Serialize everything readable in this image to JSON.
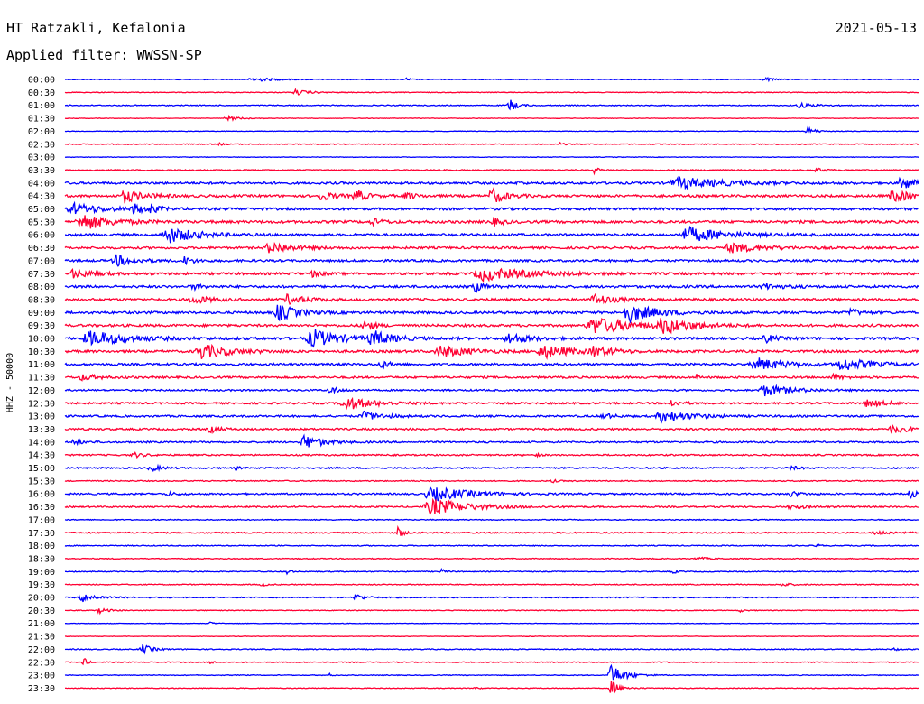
{
  "header": {
    "station": "HT Ratzakli, Kefalonia",
    "date": "2021-05-13",
    "filter": "Applied filter: WWSSN-SP"
  },
  "chart_data": {
    "type": "line",
    "title": "HT Ratzakli, Kefalonia",
    "ylabel": "HHZ - 50000",
    "colors": {
      "even": "#0000ff",
      "odd": "#ff0033"
    },
    "rows": [
      {
        "label": "00:00",
        "noise": 0.4,
        "events": [
          [
            0.22,
            2.5,
            0.02
          ],
          [
            0.82,
            2.0,
            0.01
          ],
          [
            0.4,
            1.5,
            0.005
          ]
        ]
      },
      {
        "label": "00:30",
        "noise": 0.4,
        "events": [
          [
            0.27,
            3.0,
            0.015
          ]
        ]
      },
      {
        "label": "01:00",
        "noise": 0.5,
        "events": [
          [
            0.52,
            8.0,
            0.008
          ],
          [
            0.86,
            3.0,
            0.015
          ]
        ]
      },
      {
        "label": "01:30",
        "noise": 0.3,
        "events": [
          [
            0.19,
            2.5,
            0.015
          ]
        ]
      },
      {
        "label": "02:00",
        "noise": 0.3,
        "events": [
          [
            0.87,
            4.0,
            0.01
          ]
        ]
      },
      {
        "label": "02:30",
        "noise": 0.5,
        "events": [
          [
            0.18,
            1.5,
            0.005
          ],
          [
            0.58,
            1.5,
            0.005
          ]
        ]
      },
      {
        "label": "03:00",
        "noise": 0.3,
        "events": []
      },
      {
        "label": "03:30",
        "noise": 0.6,
        "events": [
          [
            0.62,
            3.5,
            0.005
          ],
          [
            0.88,
            2.5,
            0.01
          ]
        ]
      },
      {
        "label": "04:00",
        "noise": 1.2,
        "events": [
          [
            0.72,
            6.0,
            0.05
          ],
          [
            0.98,
            8.0,
            0.015
          ],
          [
            0.53,
            2.0,
            0.005
          ]
        ]
      },
      {
        "label": "04:30",
        "noise": 1.3,
        "events": [
          [
            0.07,
            7.0,
            0.02
          ],
          [
            0.3,
            5.0,
            0.015
          ],
          [
            0.34,
            8.0,
            0.01
          ],
          [
            0.4,
            4.0,
            0.01
          ],
          [
            0.5,
            9.0,
            0.015
          ],
          [
            0.97,
            7.0,
            0.02
          ]
        ]
      },
      {
        "label": "05:00",
        "noise": 1.3,
        "events": [
          [
            0.01,
            6.0,
            0.03
          ],
          [
            0.08,
            6.0,
            0.01
          ],
          [
            0.1,
            4.0,
            0.01
          ]
        ]
      },
      {
        "label": "05:30",
        "noise": 1.4,
        "events": [
          [
            0.02,
            9.0,
            0.03
          ],
          [
            0.36,
            4.0,
            0.01
          ],
          [
            0.5,
            5.0,
            0.01
          ]
        ]
      },
      {
        "label": "06:00",
        "noise": 1.3,
        "events": [
          [
            0.12,
            9.0,
            0.03
          ],
          [
            0.73,
            8.0,
            0.04
          ]
        ]
      },
      {
        "label": "06:30",
        "noise": 1.2,
        "events": [
          [
            0.24,
            6.0,
            0.025
          ],
          [
            0.78,
            5.0,
            0.035
          ]
        ]
      },
      {
        "label": "07:00",
        "noise": 1.2,
        "events": [
          [
            0.06,
            6.0,
            0.02
          ],
          [
            0.14,
            4.0,
            0.01
          ]
        ]
      },
      {
        "label": "07:30",
        "noise": 1.3,
        "events": [
          [
            0.01,
            5.0,
            0.02
          ],
          [
            0.29,
            3.0,
            0.01
          ],
          [
            0.49,
            7.0,
            0.05
          ]
        ]
      },
      {
        "label": "08:00",
        "noise": 1.3,
        "events": [
          [
            0.48,
            6.0,
            0.01
          ],
          [
            0.15,
            3.0,
            0.01
          ],
          [
            0.82,
            3.0,
            0.02
          ]
        ]
      },
      {
        "label": "08:30",
        "noise": 1.3,
        "events": [
          [
            0.15,
            4.0,
            0.02
          ],
          [
            0.26,
            5.0,
            0.02
          ],
          [
            0.62,
            6.0,
            0.02
          ]
        ]
      },
      {
        "label": "09:00",
        "noise": 1.3,
        "events": [
          [
            0.25,
            9.0,
            0.02
          ],
          [
            0.66,
            10.0,
            0.03
          ],
          [
            0.92,
            4.0,
            0.01
          ]
        ]
      },
      {
        "label": "09:30",
        "noise": 1.3,
        "events": [
          [
            0.35,
            6.0,
            0.01
          ],
          [
            0.62,
            9.0,
            0.04
          ],
          [
            0.7,
            8.0,
            0.03
          ]
        ]
      },
      {
        "label": "10:00",
        "noise": 1.4,
        "events": [
          [
            0.03,
            8.0,
            0.04
          ],
          [
            0.29,
            10.0,
            0.03
          ],
          [
            0.36,
            8.0,
            0.02
          ],
          [
            0.52,
            6.0,
            0.02
          ],
          [
            0.82,
            5.0,
            0.01
          ]
        ]
      },
      {
        "label": "10:30",
        "noise": 1.3,
        "events": [
          [
            0.16,
            8.0,
            0.03
          ],
          [
            0.44,
            6.0,
            0.03
          ],
          [
            0.56,
            7.0,
            0.03
          ],
          [
            0.62,
            5.0,
            0.02
          ]
        ]
      },
      {
        "label": "11:00",
        "noise": 1.2,
        "events": [
          [
            0.81,
            7.0,
            0.03
          ],
          [
            0.91,
            7.0,
            0.03
          ],
          [
            0.37,
            4.0,
            0.01
          ]
        ]
      },
      {
        "label": "11:30",
        "noise": 1.1,
        "events": [
          [
            0.02,
            3.0,
            0.02
          ],
          [
            0.74,
            3.0,
            0.005
          ],
          [
            0.9,
            3.0,
            0.01
          ]
        ]
      },
      {
        "label": "12:00",
        "noise": 0.9,
        "events": [
          [
            0.31,
            4.0,
            0.01
          ],
          [
            0.82,
            6.0,
            0.03
          ]
        ]
      },
      {
        "label": "12:30",
        "noise": 1.0,
        "events": [
          [
            0.33,
            7.0,
            0.03
          ],
          [
            0.71,
            4.0,
            0.01
          ],
          [
            0.94,
            4.0,
            0.02
          ]
        ]
      },
      {
        "label": "13:00",
        "noise": 1.0,
        "events": [
          [
            0.35,
            5.0,
            0.02
          ],
          [
            0.63,
            4.0,
            0.01
          ],
          [
            0.7,
            7.0,
            0.03
          ]
        ]
      },
      {
        "label": "13:30",
        "noise": 1.0,
        "events": [
          [
            0.17,
            4.0,
            0.01
          ],
          [
            0.97,
            4.0,
            0.02
          ]
        ]
      },
      {
        "label": "14:00",
        "noise": 0.9,
        "events": [
          [
            0.28,
            8.0,
            0.02
          ],
          [
            0.01,
            3.0,
            0.01
          ]
        ]
      },
      {
        "label": "14:30",
        "noise": 0.8,
        "events": [
          [
            0.08,
            3.0,
            0.01
          ],
          [
            0.55,
            2.0,
            0.005
          ]
        ]
      },
      {
        "label": "15:00",
        "noise": 0.8,
        "events": [
          [
            0.1,
            4.0,
            0.01
          ],
          [
            0.2,
            2.0,
            0.005
          ],
          [
            0.85,
            2.0,
            0.01
          ]
        ]
      },
      {
        "label": "15:30",
        "noise": 0.6,
        "events": [
          [
            0.57,
            2.0,
            0.005
          ]
        ]
      },
      {
        "label": "16:00",
        "noise": 0.9,
        "events": [
          [
            0.43,
            8.0,
            0.04
          ],
          [
            0.12,
            2.0,
            0.01
          ],
          [
            0.85,
            3.0,
            0.01
          ],
          [
            0.99,
            4.0,
            0.01
          ]
        ]
      },
      {
        "label": "16:30",
        "noise": 0.8,
        "events": [
          [
            0.43,
            9.0,
            0.04
          ],
          [
            0.85,
            2.0,
            0.02
          ]
        ]
      },
      {
        "label": "17:00",
        "noise": 0.5,
        "events": []
      },
      {
        "label": "17:30",
        "noise": 0.7,
        "events": [
          [
            0.39,
            7.0,
            0.005
          ],
          [
            0.95,
            2.0,
            0.02
          ]
        ]
      },
      {
        "label": "18:00",
        "noise": 0.5,
        "events": [
          [
            0.88,
            2.0,
            0.005
          ]
        ]
      },
      {
        "label": "18:30",
        "noise": 0.5,
        "events": [
          [
            0.74,
            2.0,
            0.01
          ]
        ]
      },
      {
        "label": "19:00",
        "noise": 0.5,
        "events": [
          [
            0.26,
            5.0,
            0.003
          ],
          [
            0.44,
            3.0,
            0.005
          ],
          [
            0.71,
            3.0,
            0.005
          ]
        ]
      },
      {
        "label": "19:30",
        "noise": 0.5,
        "events": [
          [
            0.23,
            2.5,
            0.005
          ],
          [
            0.84,
            2.0,
            0.01
          ]
        ]
      },
      {
        "label": "20:00",
        "noise": 0.6,
        "events": [
          [
            0.02,
            5.0,
            0.015
          ],
          [
            0.34,
            4.0,
            0.01
          ]
        ]
      },
      {
        "label": "20:30",
        "noise": 0.4,
        "events": [
          [
            0.04,
            3.0,
            0.01
          ],
          [
            0.79,
            2.0,
            0.005
          ]
        ]
      },
      {
        "label": "21:00",
        "noise": 0.3,
        "events": [
          [
            0.17,
            1.5,
            0.005
          ]
        ]
      },
      {
        "label": "21:30",
        "noise": 0.3,
        "events": []
      },
      {
        "label": "22:00",
        "noise": 0.5,
        "events": [
          [
            0.09,
            6.0,
            0.01
          ],
          [
            0.97,
            2.0,
            0.005
          ]
        ]
      },
      {
        "label": "22:30",
        "noise": 0.5,
        "events": [
          [
            0.02,
            8.0,
            0.004
          ],
          [
            0.17,
            1.5,
            0.005
          ]
        ]
      },
      {
        "label": "23:00",
        "noise": 0.4,
        "events": [
          [
            0.64,
            12.0,
            0.015
          ],
          [
            0.31,
            1.5,
            0.003
          ]
        ]
      },
      {
        "label": "23:30",
        "noise": 0.4,
        "events": [
          [
            0.64,
            8.0,
            0.01
          ],
          [
            0.48,
            1.5,
            0.005
          ]
        ]
      }
    ]
  }
}
